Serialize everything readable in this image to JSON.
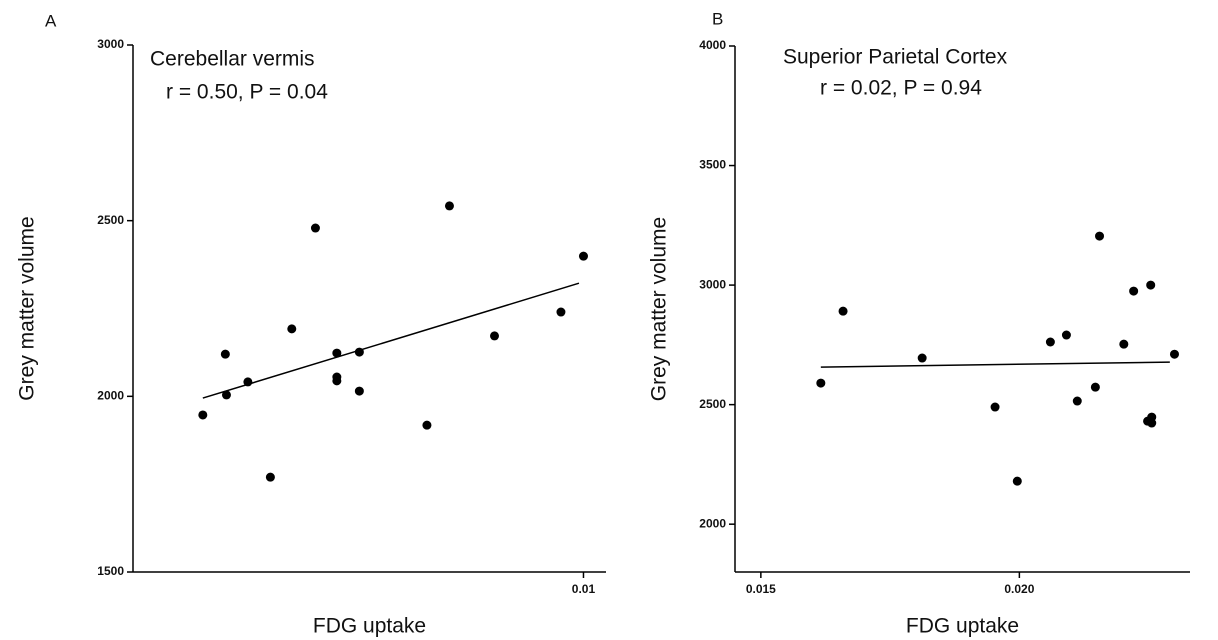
{
  "chart_data": [
    {
      "type": "scatter",
      "panel": "A",
      "title": "Cerebellar vermis",
      "annotation": "r = 0.50, P = 0.04",
      "x_label": "FDG uptake",
      "y_label": "Grey matter volume",
      "color": "#000000",
      "xlim": [
        0.006,
        0.0102
      ],
      "ylim": [
        1500,
        3000
      ],
      "xticks": [
        0.01
      ],
      "yticks": [
        1500,
        2000,
        2500,
        3000
      ],
      "series": [
        {
          "x": [
            0.00662,
            0.00683,
            0.00682,
            0.00702,
            0.00722,
            0.00741,
            0.00762,
            0.00781,
            0.00781,
            0.00781,
            0.00801,
            0.00801,
            0.00861,
            0.00881,
            0.00921,
            0.0098,
            0.01
          ],
          "values": [
            1947,
            2004,
            2120,
            2041,
            1770,
            2192,
            2479,
            2123,
            2055,
            2044,
            2126,
            2015,
            1918,
            2542,
            2172,
            2240,
            2399
          ]
        }
      ],
      "fit": {
        "x": [
          0.00662,
          0.00996
        ],
        "values": [
          1995,
          2322
        ]
      }
    },
    {
      "type": "scatter",
      "panel": "B",
      "title": "Superior Parietal Cortex",
      "annotation": "r = 0.02, P = 0.94",
      "x_label": "FDG uptake",
      "y_label": "Grey matter volume",
      "color": "#000000",
      "xlim": [
        0.0145,
        0.0233
      ],
      "ylim": [
        1800,
        4000
      ],
      "xticks": [
        0.015,
        {
          "value": 0.02,
          "label": "0.020"
        }
      ],
      "yticks": [
        2000,
        2500,
        3000,
        3500,
        4000
      ],
      "series": [
        {
          "x": [
            0.01616,
            0.01659,
            0.01812,
            0.01996,
            0.01953,
            0.0206,
            0.02091,
            0.02112,
            0.02147,
            0.02155,
            0.02202,
            0.02221,
            0.02254,
            0.02248,
            0.02256,
            0.02256,
            0.023
          ],
          "values": [
            2590,
            2891,
            2695,
            2180,
            2490,
            2762,
            2791,
            2515,
            2573,
            3205,
            2753,
            2975,
            3000,
            2431,
            2448,
            2423,
            2711
          ]
        }
      ],
      "fit": {
        "x": [
          0.01616,
          0.02291
        ],
        "values": [
          2657,
          2678
        ]
      }
    }
  ]
}
